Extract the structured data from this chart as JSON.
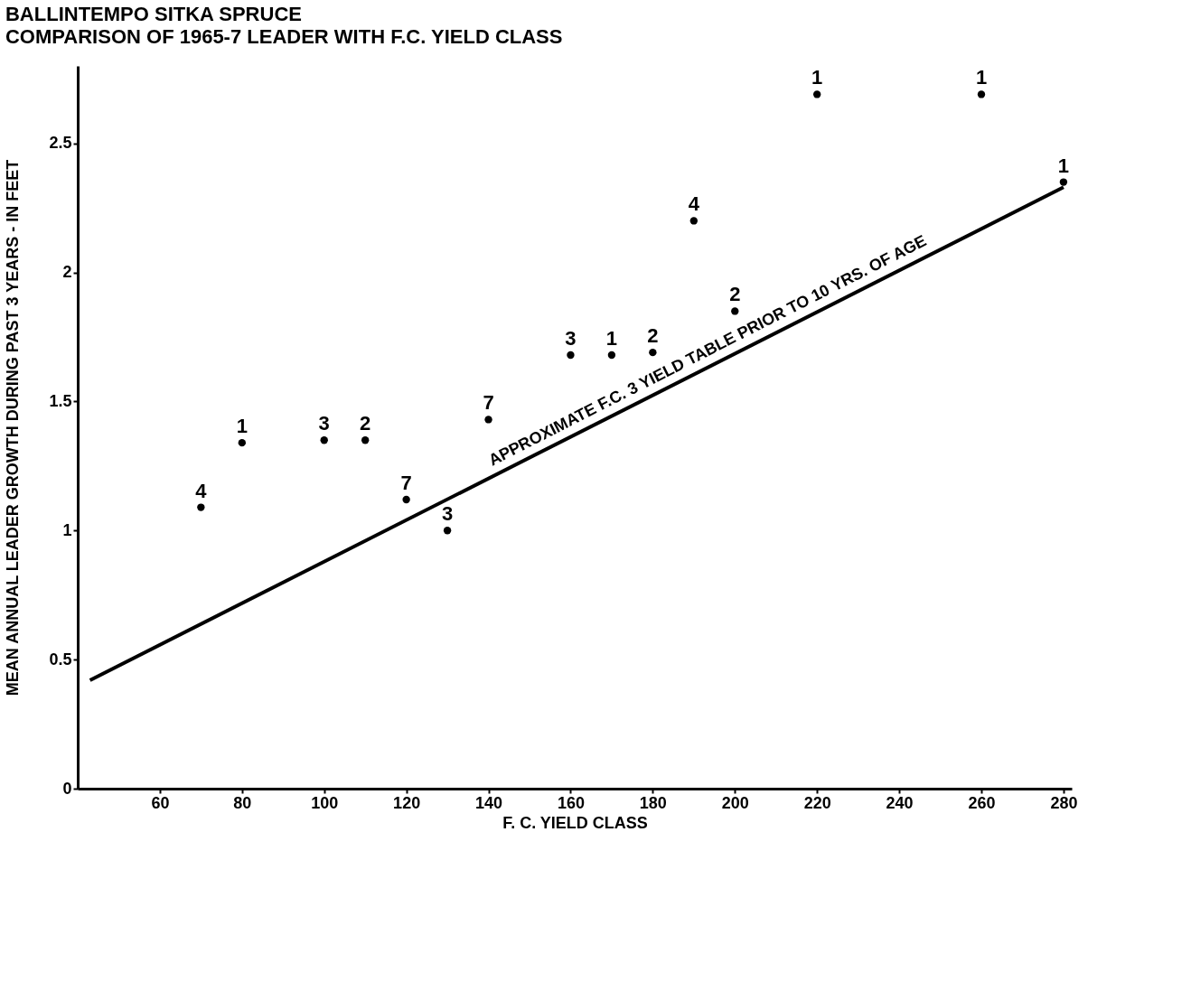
{
  "chart_data": {
    "type": "scatter",
    "title": "BALLINTEMPO    SITKA SPRUCE",
    "subtitle": "COMPARISON OF 1965-7 LEADER WITH F.C. YIELD CLASS",
    "xlabel": "F. C. YIELD CLASS",
    "ylabel": "MEAN ANNUAL LEADER GROWTH DURING PAST 3 YEARS - IN FEET",
    "series": [
      {
        "marker": "circle",
        "color": "#000000",
        "x": [
          70,
          80,
          100,
          110,
          120,
          130,
          140,
          160,
          170,
          180,
          190,
          200,
          220,
          260,
          280
        ],
        "values": [
          1.09,
          1.34,
          1.35,
          1.35,
          1.12,
          1.0,
          1.43,
          1.68,
          1.68,
          1.69,
          2.2,
          1.85,
          2.69,
          2.69,
          2.35
        ]
      },
      {
        "type": "line",
        "marker": "none",
        "color": "#000000",
        "x": [
          43,
          280
        ],
        "values": [
          0.42,
          2.33
        ]
      }
    ],
    "annotations": [
      {
        "text": "4",
        "x": 70,
        "y": 1.09
      },
      {
        "text": "1",
        "x": 80,
        "y": 1.34
      },
      {
        "text": "3",
        "x": 100,
        "y": 1.35
      },
      {
        "text": "2",
        "x": 110,
        "y": 1.35
      },
      {
        "text": "7",
        "x": 120,
        "y": 1.12
      },
      {
        "text": "3",
        "x": 130,
        "y": 1.0
      },
      {
        "text": "7",
        "x": 140,
        "y": 1.43
      },
      {
        "text": "3",
        "x": 160,
        "y": 1.68
      },
      {
        "text": "1",
        "x": 170,
        "y": 1.68
      },
      {
        "text": "2",
        "x": 180,
        "y": 1.69
      },
      {
        "text": "4",
        "x": 190,
        "y": 2.2
      },
      {
        "text": "2",
        "x": 200,
        "y": 1.85
      },
      {
        "text": "1",
        "x": 220,
        "y": 2.69
      },
      {
        "text": "1",
        "x": 260,
        "y": 2.69
      },
      {
        "text": "1",
        "x": 280,
        "y": 2.35
      },
      {
        "text": "APPROXIMATE F.C. 3 YIELD TABLE PRIOR TO 10 YRS. OF AGE",
        "x": 195,
        "y": 1.645
      }
    ],
    "xlim": [
      40,
      282
    ],
    "xticks": [
      60,
      80,
      100,
      120,
      140,
      160,
      180,
      200,
      220,
      240,
      260,
      280
    ],
    "ylim": [
      0,
      2.8
    ],
    "yticks": [
      0,
      0.5,
      1.0,
      1.5,
      2.0,
      2.5
    ],
    "grid": false
  }
}
